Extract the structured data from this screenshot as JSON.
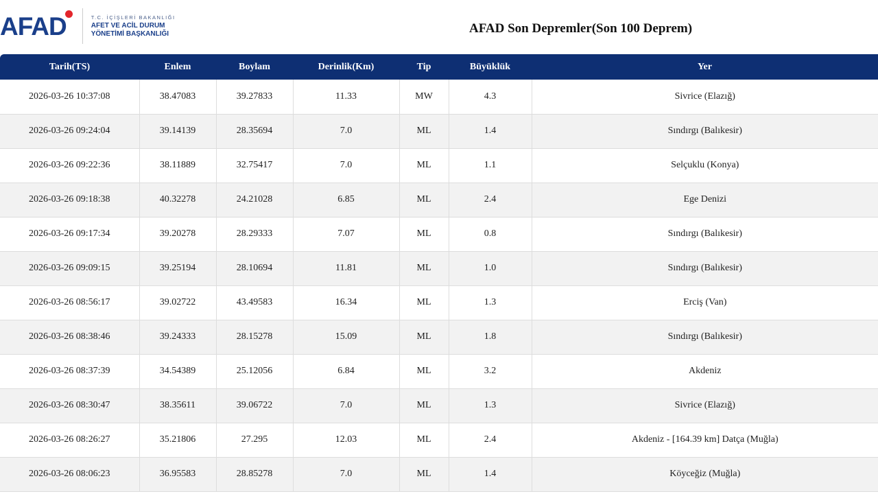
{
  "logo": {
    "text": "AFAD",
    "line1": "T.C. İÇİŞLERİ BAKANLIĞI",
    "line2": "AFET VE ACİL DURUM",
    "line3": "YÖNETİMİ BAŞKANLIĞI"
  },
  "title": "AFAD Son Depremler(Son 100 Deprem)",
  "table": {
    "columns": [
      "Tarih(TS)",
      "Enlem",
      "Boylam",
      "Derinlik(Km)",
      "Tip",
      "Büyüklük",
      "Yer"
    ],
    "rows": [
      [
        "2026-03-26 10:37:08",
        "38.47083",
        "39.27833",
        "11.33",
        "MW",
        "4.3",
        "Sivrice (Elazığ)"
      ],
      [
        "2026-03-26 09:24:04",
        "39.14139",
        "28.35694",
        "7.0",
        "ML",
        "1.4",
        "Sındırgı (Balıkesir)"
      ],
      [
        "2026-03-26 09:22:36",
        "38.11889",
        "32.75417",
        "7.0",
        "ML",
        "1.1",
        "Selçuklu (Konya)"
      ],
      [
        "2026-03-26 09:18:38",
        "40.32278",
        "24.21028",
        "6.85",
        "ML",
        "2.4",
        "Ege Denizi"
      ],
      [
        "2026-03-26 09:17:34",
        "39.20278",
        "28.29333",
        "7.07",
        "ML",
        "0.8",
        "Sındırgı (Balıkesir)"
      ],
      [
        "2026-03-26 09:09:15",
        "39.25194",
        "28.10694",
        "11.81",
        "ML",
        "1.0",
        "Sındırgı (Balıkesir)"
      ],
      [
        "2026-03-26 08:56:17",
        "39.02722",
        "43.49583",
        "16.34",
        "ML",
        "1.3",
        "Erciş (Van)"
      ],
      [
        "2026-03-26 08:38:46",
        "39.24333",
        "28.15278",
        "15.09",
        "ML",
        "1.8",
        "Sındırgı (Balıkesir)"
      ],
      [
        "2026-03-26 08:37:39",
        "34.54389",
        "25.12056",
        "6.84",
        "ML",
        "3.2",
        "Akdeniz"
      ],
      [
        "2026-03-26 08:30:47",
        "38.35611",
        "39.06722",
        "7.0",
        "ML",
        "1.3",
        "Sivrice (Elazığ)"
      ],
      [
        "2026-03-26 08:26:27",
        "35.21806",
        "27.295",
        "12.03",
        "ML",
        "2.4",
        "Akdeniz - [164.39 km] Datça (Muğla)"
      ],
      [
        "2026-03-26 08:06:23",
        "36.95583",
        "28.85278",
        "7.0",
        "ML",
        "1.4",
        "Köyceğiz (Muğla)"
      ]
    ]
  },
  "colors": {
    "header_bg": "#0e2f73",
    "brand": "#1a3f8a",
    "flag": "#e3262c"
  }
}
